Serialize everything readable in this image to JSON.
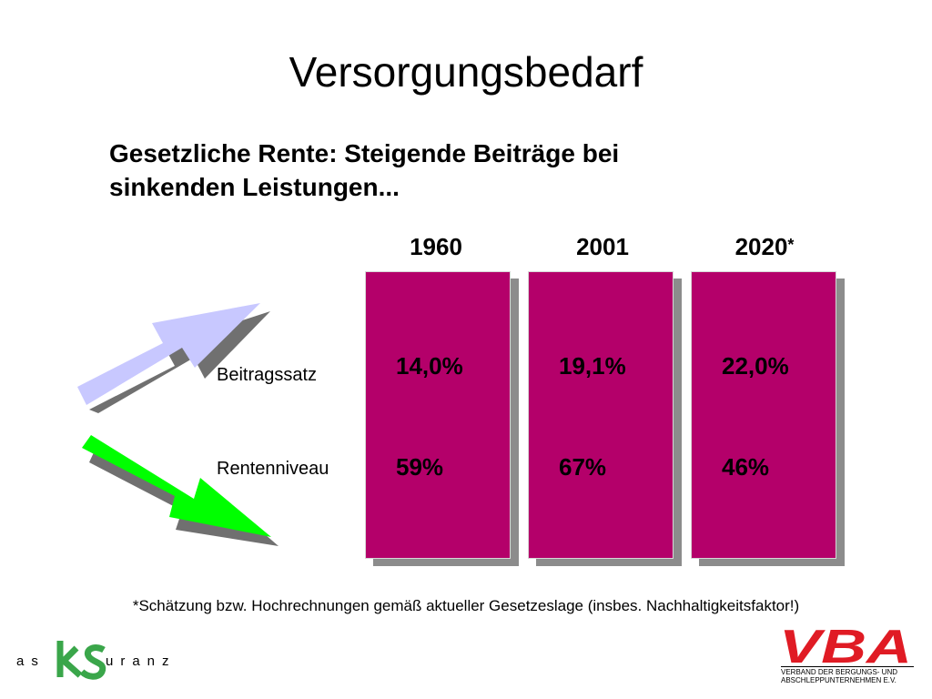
{
  "title": "Versorgungsbedarf",
  "subtitle_line1": "Gesetzliche Rente: Steigende Beiträge bei",
  "subtitle_line2": "sinkenden Leistungen...",
  "columns": [
    {
      "year": "1960",
      "asterisk": "",
      "beitragssatz": "14,0%",
      "rentenniveau": "59%"
    },
    {
      "year": "2001",
      "asterisk": "",
      "beitragssatz": "19,1%",
      "rentenniveau": "67%"
    },
    {
      "year": "2020",
      "asterisk": "*",
      "beitragssatz": "22,0%",
      "rentenniveau": "46%"
    }
  ],
  "row_labels": {
    "beitragssatz": "Beitragssatz",
    "rentenniveau": "Rentenniveau"
  },
  "footnote": "*Schätzung bzw. Hochrechnungen gemäß aktueller Gesetzeslage (insbes. Nachhaltigkeitsfaktor!)",
  "logos": {
    "left_text": "assekuranz",
    "right_text": "VBA",
    "right_caption_line1": "VERBAND DER BERGUNGS- UND",
    "right_caption_line2": "ABSCHLEPPUNTERNEHMEN E.V."
  },
  "colors": {
    "column": "#b4006a",
    "column_shadow": "#8c8c8c",
    "arrow_up": "#c8c8ff",
    "arrow_down": "#00ff00",
    "arrow_shadow": "#707070",
    "logo_green": "#3aa64a",
    "logo_red": "#e01b24"
  }
}
